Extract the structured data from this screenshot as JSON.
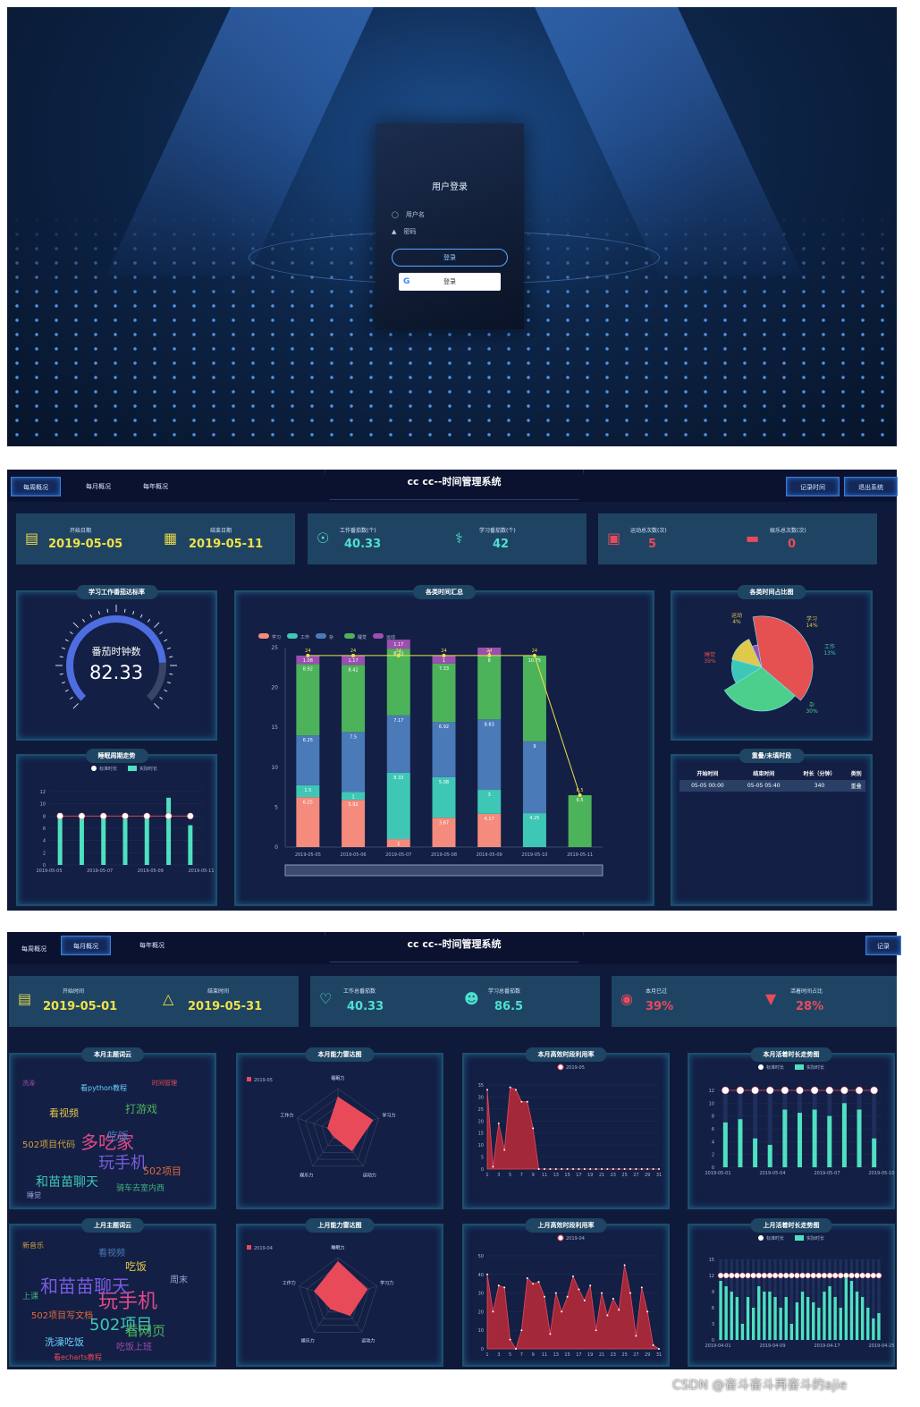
{
  "login": {
    "title": "用户登录",
    "username_placeholder": "用户名",
    "password_placeholder": "密码",
    "login_button": "登录",
    "google_button": "登录"
  },
  "weekly": {
    "nav": [
      "每周概况",
      "每月概况",
      "每年概况"
    ],
    "app_title": "cc cc--时间管理系统",
    "right_buttons": [
      "记录时间",
      "退出系统"
    ],
    "stats": [
      {
        "label": "开始日期",
        "value": "2019-05-05"
      },
      {
        "label": "结束日期",
        "value": "2019-05-11"
      },
      {
        "label": "工作番茄数(个)",
        "value": "40.33"
      },
      {
        "label": "学习番茄数(个)",
        "value": "42"
      },
      {
        "label": "运动总次数(次)",
        "value": "5"
      },
      {
        "label": "娱乐总次数(次)",
        "value": "0"
      }
    ],
    "panels": {
      "gauge_title": "学习工作番茄达标率",
      "sleep_title": "睡眠周期走势",
      "stack_title": "各类时间汇总",
      "pie_title": "各类时间占比图",
      "overlap_title": "重叠/未填时段"
    },
    "gauge": {
      "label": "番茄时钟数",
      "value": "82.33",
      "fraction": 0.82
    },
    "overlap_table": {
      "headers": [
        "开始时间",
        "结束时间",
        "时长（分钟）",
        "类别"
      ],
      "rows": [
        [
          "05-05 00:00",
          "05-05 05:40",
          "340",
          "重叠"
        ]
      ]
    },
    "pie_labels": [
      {
        "name": "运动",
        "pct": "4%"
      },
      {
        "name": "学习",
        "pct": "14%"
      },
      {
        "name": "工作",
        "pct": "13%"
      },
      {
        "name": "杂",
        "pct": "30%"
      },
      {
        "name": "睡觉",
        "pct": "39%"
      }
    ]
  },
  "monthly": {
    "nav": [
      "每周概况",
      "每月概况",
      "每年概况"
    ],
    "app_title": "cc cc--时间管理系统",
    "right_buttons": [
      "记录"
    ],
    "stats": [
      {
        "label": "开始时间",
        "value": "2019-05-01"
      },
      {
        "label": "结束时间",
        "value": "2019-05-31"
      },
      {
        "label": "工作总番茄数",
        "value": "40.33"
      },
      {
        "label": "学习总番茄数",
        "value": "86.5"
      },
      {
        "label": "本月已过",
        "value": "39%"
      },
      {
        "label": "活着时间占比",
        "value": "28%"
      }
    ],
    "panels": [
      "本月主题词云",
      "本月能力雷达图",
      "本月高效时段利用率",
      "本月活着时长走势图",
      "上月主题词云",
      "上月能力雷达图",
      "上月高效时段利用率",
      "上月活着时长走势图"
    ],
    "radar_axes": [
      "睡眠力",
      "学习力",
      "运动力",
      "娱乐力",
      "工作力"
    ],
    "radar_legend": [
      "2019-05",
      "2019-04"
    ],
    "words_cur": [
      "多吃家",
      "玩手机",
      "和苗苗聊天",
      "看视频",
      "打游戏",
      "吃饭",
      "502项目",
      "洗澡",
      "看python教程",
      "时间管理",
      "502项目代码",
      "骑车去室内西",
      "睡觉"
    ],
    "words_prev": [
      "玩手机",
      "和苗苗聊天",
      "502项目",
      "吃饭",
      "看网页",
      "看视频",
      "502项目写文档",
      "吃饭上班",
      "洗澡吃饭",
      "看echarts教程",
      "新音乐",
      "上课",
      "周末"
    ]
  },
  "chart_data": [
    {
      "type": "bar",
      "title": "各类时间汇总",
      "categories": [
        "2019-05-05",
        "2019-05-06",
        "2019-05-07",
        "2019-05-08",
        "2019-05-09",
        "2019-05-10",
        "2019-05-11"
      ],
      "legend": [
        "学习",
        "工作",
        "杂",
        "睡觉",
        "运动"
      ],
      "colors": [
        "#f58b7c",
        "#3fc7b6",
        "#4a7ab8",
        "#4db35a",
        "#9b4fb0"
      ],
      "series": [
        {
          "name": "学习",
          "values": [
            6.25,
            5.92,
            1,
            3.67,
            4.17,
            0,
            0
          ]
        },
        {
          "name": "工作",
          "values": [
            1.5,
            1,
            8.33,
            5.08,
            3,
            4.25,
            0
          ]
        },
        {
          "name": "杂",
          "values": [
            6.25,
            7.5,
            7.17,
            6.92,
            8.83,
            9,
            0
          ]
        },
        {
          "name": "睡觉",
          "values": [
            8.92,
            8.42,
            8.33,
            7.33,
            8,
            10.75,
            6.5
          ]
        },
        {
          "name": "运动",
          "values": [
            1.08,
            1.17,
            1.17,
            1,
            1,
            0,
            0
          ]
        }
      ],
      "totals": [
        24,
        24,
        24,
        24,
        24,
        24,
        6.5
      ],
      "ylim": [
        0,
        25
      ]
    },
    {
      "type": "pie",
      "title": "各类时间占比图",
      "series": [
        {
          "name": "睡觉",
          "value": 39
        },
        {
          "name": "杂",
          "value": 30
        },
        {
          "name": "工作",
          "value": 13
        },
        {
          "name": "学习",
          "value": 14
        },
        {
          "name": "运动",
          "value": 4
        }
      ]
    },
    {
      "type": "bar",
      "title": "睡眠周期走势",
      "legend": [
        "标准时长",
        "实际时长"
      ],
      "categories": [
        "2019-05-05",
        "2019-05-06",
        "2019-05-07",
        "2019-05-08",
        "2019-05-09",
        "2019-05-10",
        "2019-05-11"
      ],
      "tick_labels": [
        "2019-05-05",
        "2019-05-07",
        "2019-05-09",
        "2019-05-11"
      ],
      "series": [
        {
          "name": "实际时长",
          "values": [
            8.5,
            8,
            8,
            7.5,
            8,
            11,
            6.5
          ]
        },
        {
          "name": "标准时长",
          "values": [
            8,
            8,
            8,
            8,
            8,
            8,
            8
          ]
        }
      ],
      "ylim": [
        0,
        12
      ]
    },
    {
      "type": "area",
      "title": "本月高效时段利用率",
      "legend": [
        "2019-05"
      ],
      "x": [
        1,
        2,
        3,
        4,
        5,
        6,
        7,
        8,
        9,
        10,
        11,
        12,
        13,
        14,
        15,
        16,
        17,
        18,
        19,
        20,
        21,
        22,
        23,
        24,
        25,
        26,
        27,
        28,
        29,
        30,
        31
      ],
      "values": [
        33,
        1,
        19,
        8,
        34,
        33,
        28,
        28,
        17,
        0,
        0,
        0,
        0,
        0,
        0,
        0,
        0,
        0,
        0,
        0,
        0,
        0,
        0,
        0,
        0,
        0,
        0,
        0,
        0,
        0,
        0
      ],
      "ylim": [
        0,
        35
      ]
    },
    {
      "type": "bar",
      "title": "本月活着时长走势图",
      "legend": [
        "标准时长",
        "实际时长"
      ],
      "tick_labels": [
        "2019-05-01",
        "2019-05-04",
        "2019-05-07",
        "2019-05-10"
      ],
      "series": [
        {
          "name": "实际时长",
          "values": [
            7,
            7.5,
            4.5,
            3.5,
            9,
            8.5,
            9,
            8,
            10,
            9,
            4.5
          ]
        },
        {
          "name": "标准时长",
          "values": [
            12,
            12,
            12,
            12,
            12,
            12,
            12,
            12,
            12,
            12,
            12
          ]
        }
      ],
      "ylim": [
        0,
        12
      ]
    },
    {
      "type": "area",
      "title": "上月高效时段利用率",
      "legend": [
        "2019-04"
      ],
      "x": [
        1,
        2,
        3,
        4,
        5,
        6,
        7,
        8,
        9,
        10,
        11,
        12,
        13,
        14,
        15,
        16,
        17,
        18,
        19,
        20,
        21,
        22,
        23,
        24,
        25,
        26,
        27,
        28,
        29,
        30,
        31
      ],
      "values": [
        40,
        20,
        34,
        33,
        5,
        0,
        10,
        38,
        35,
        36,
        28,
        8,
        30,
        20,
        28,
        39,
        32,
        26,
        34,
        10,
        30,
        18,
        27,
        21,
        45,
        30,
        7,
        33,
        20,
        2,
        0
      ],
      "ylim": [
        0,
        50
      ]
    },
    {
      "type": "bar",
      "title": "上月活着时长走势图",
      "legend": [
        "标准时长",
        "实际时长"
      ],
      "tick_labels": [
        "2019-04-01",
        "2019-04-09",
        "2019-04-17",
        "2019-04-25"
      ],
      "series": [
        {
          "name": "实际时长",
          "values": [
            11,
            10,
            9,
            8,
            3,
            8,
            6,
            10,
            9,
            9,
            8,
            6,
            8,
            3,
            7,
            9,
            8,
            7,
            6,
            9,
            10,
            8,
            6,
            12,
            11,
            9,
            8,
            6,
            4,
            5
          ]
        },
        {
          "name": "标准时长",
          "values": [
            12,
            12,
            12,
            12,
            12,
            12,
            12,
            12,
            12,
            12,
            12,
            12,
            12,
            12,
            12,
            12,
            12,
            12,
            12,
            12,
            12,
            12,
            12,
            12,
            12,
            12,
            12,
            12,
            12,
            12
          ]
        }
      ],
      "ylim": [
        0,
        15
      ]
    },
    {
      "type": "radar",
      "title": "本月能力雷达图",
      "axes": [
        "睡眠力",
        "学习力",
        "运动力",
        "娱乐力",
        "工作力"
      ],
      "series": [
        {
          "name": "2019-05",
          "values": [
            0.8,
            0.85,
            0.55,
            0.15,
            0.25
          ]
        }
      ]
    },
    {
      "type": "radar",
      "title": "上月能力雷达图",
      "axes": [
        "睡眠力",
        "学习力",
        "运动力",
        "娱乐力",
        "工作力"
      ],
      "series": [
        {
          "name": "2019-04",
          "values": [
            0.9,
            0.75,
            0.5,
            0.3,
            0.6
          ]
        }
      ]
    }
  ],
  "watermark": "CSDN @奋斗奋斗再奋斗的ajie"
}
